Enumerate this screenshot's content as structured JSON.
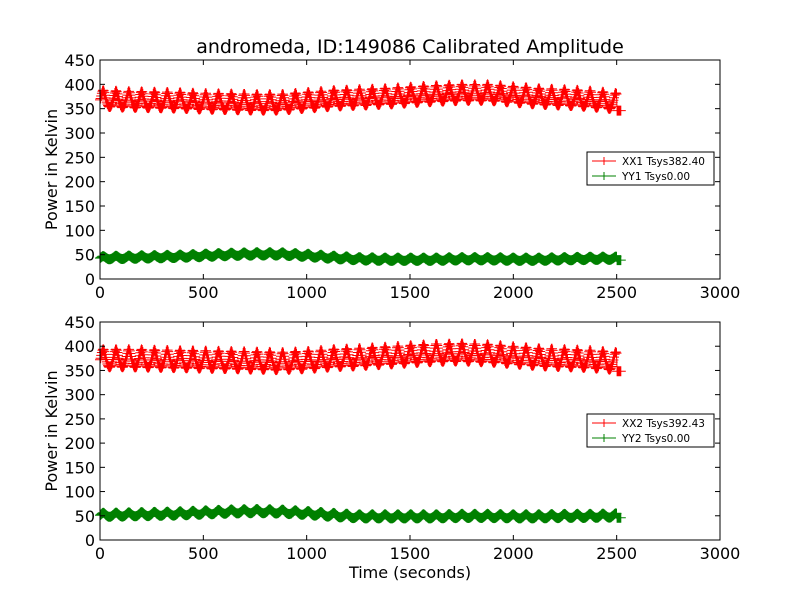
{
  "title": "andromeda, ID:149086 Calibrated Amplitude",
  "colors": {
    "red": "#ff0000",
    "green": "#008000",
    "axis": "#000000",
    "background": "#ffffff"
  },
  "chart_data": [
    {
      "type": "line",
      "marker": "plus",
      "title": "andromeda, ID:149086 Calibrated Amplitude",
      "ylabel": "Power in Kelvin",
      "xlabel": "",
      "xlim": [
        0,
        3000
      ],
      "ylim": [
        0,
        450
      ],
      "xticks": [
        0,
        500,
        1000,
        1500,
        2000,
        2500,
        3000
      ],
      "yticks": [
        0,
        50,
        100,
        150,
        200,
        250,
        300,
        350,
        400,
        450
      ],
      "legend_position": "center-right",
      "series": [
        {
          "name": "XX1 Tsys382.40",
          "color": "#ff0000",
          "x": [
            0,
            125,
            250,
            375,
            500,
            625,
            750,
            875,
            1000,
            1125,
            1250,
            1375,
            1500,
            1625,
            1750,
            1875,
            2000,
            2125,
            2250,
            2375,
            2500
          ],
          "y": [
            368,
            366,
            365,
            364,
            362,
            361,
            360,
            360,
            364,
            368,
            370,
            372,
            375,
            378,
            380,
            380,
            376,
            372,
            370,
            367,
            362
          ],
          "amplitude": 20,
          "period": 62
        },
        {
          "name": "YY1 Tsys0.00",
          "color": "#008000",
          "x": [
            0,
            125,
            250,
            375,
            500,
            625,
            750,
            875,
            1000,
            1125,
            1250,
            1375,
            1500,
            1625,
            1750,
            1875,
            2000,
            2125,
            2250,
            2375,
            2500
          ],
          "y": [
            43,
            44,
            45,
            46,
            48,
            50,
            51,
            51,
            48,
            44,
            41,
            40,
            40,
            40,
            41,
            41,
            40,
            40,
            41,
            42,
            42
          ],
          "amplitude": 4,
          "period": 62
        }
      ]
    },
    {
      "type": "line",
      "marker": "plus",
      "title": "",
      "ylabel": "Power in Kelvin",
      "xlabel": "Time (seconds)",
      "xlim": [
        0,
        3000
      ],
      "ylim": [
        0,
        450
      ],
      "xticks": [
        0,
        500,
        1000,
        1500,
        2000,
        2500,
        3000
      ],
      "yticks": [
        0,
        50,
        100,
        150,
        200,
        250,
        300,
        350,
        400,
        450
      ],
      "legend_position": "center-right",
      "series": [
        {
          "name": "XX2 Tsys392.43",
          "color": "#ff0000",
          "x": [
            0,
            125,
            250,
            375,
            500,
            625,
            750,
            875,
            1000,
            1125,
            1250,
            1375,
            1500,
            1625,
            1750,
            1875,
            2000,
            2125,
            2250,
            2375,
            2500
          ],
          "y": [
            372,
            372,
            371,
            370,
            369,
            368,
            367,
            366,
            368,
            372,
            374,
            377,
            380,
            383,
            384,
            382,
            378,
            374,
            372,
            370,
            366
          ],
          "amplitude": 22,
          "period": 62
        },
        {
          "name": "YY2 Tsys0.00",
          "color": "#008000",
          "x": [
            0,
            125,
            250,
            375,
            500,
            625,
            750,
            875,
            1000,
            1125,
            1250,
            1375,
            1500,
            1625,
            1750,
            1875,
            2000,
            2125,
            2250,
            2375,
            2500
          ],
          "y": [
            51,
            52,
            53,
            54,
            56,
            58,
            59,
            58,
            55,
            51,
            48,
            48,
            48,
            48,
            49,
            49,
            48,
            48,
            49,
            49,
            50
          ],
          "amplitude": 5,
          "period": 62
        }
      ]
    }
  ]
}
